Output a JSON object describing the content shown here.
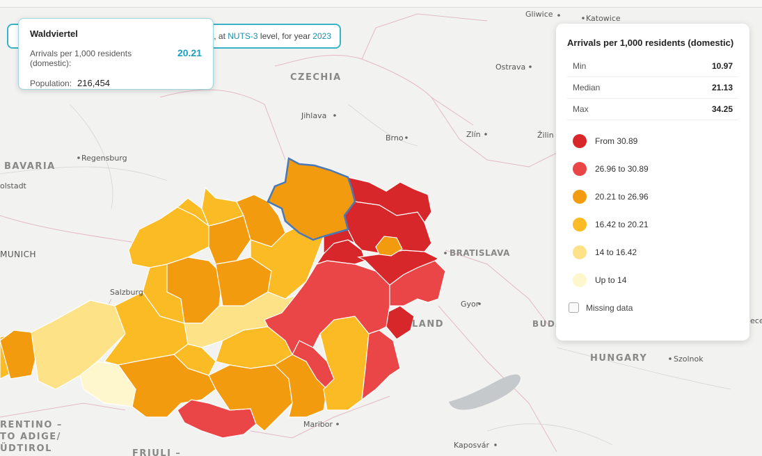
{
  "banner": {
    "text_prefix": "a",
    "text_mid": ", at ",
    "level": "NUTS-3",
    "text_level": " level, for year ",
    "year": "2023"
  },
  "tooltip": {
    "region": "Waldviertel",
    "metric_label": "Arrivals per 1,000 residents (domestic):",
    "metric_value": "20.21",
    "population_label": "Population:",
    "population_value": "216,454"
  },
  "legend": {
    "title": "Arrivals per 1,000 residents (domestic)",
    "stats": [
      {
        "label": "Min",
        "value": "10.97"
      },
      {
        "label": "Median",
        "value": "21.13"
      },
      {
        "label": "Max",
        "value": "34.25"
      }
    ],
    "items": [
      {
        "label": "From 30.89",
        "color": "#d7272a"
      },
      {
        "label": "26.96 to 30.89",
        "color": "#ea4647"
      },
      {
        "label": "20.21 to 26.96",
        "color": "#f29b0f"
      },
      {
        "label": "16.42 to 20.21",
        "color": "#fbbb25"
      },
      {
        "label": "14 to 16.42",
        "color": "#fde287"
      },
      {
        "label": "Up to 14",
        "color": "#fef6cc"
      }
    ],
    "missing_label": "Missing data"
  },
  "map_labels": {
    "countries": [
      "CZECHIA",
      "BAVARIA",
      "HUNGARY",
      "BRATISLAVA",
      "RENTINO –",
      "TO ADIGE/",
      "ÜDTIROL",
      "FRIULI –",
      "LAND",
      "BUDA"
    ],
    "cities": [
      "Gliwice",
      "Katowice",
      "Ostrava",
      "Jihlava",
      "Brno",
      "Zlín",
      "Žilin",
      "Regensburg",
      "olstadt",
      "MUNICH",
      "Salzburg",
      "Gyor",
      "Szolnok",
      "Maribor",
      "Kaposvár",
      "ece"
    ]
  }
}
